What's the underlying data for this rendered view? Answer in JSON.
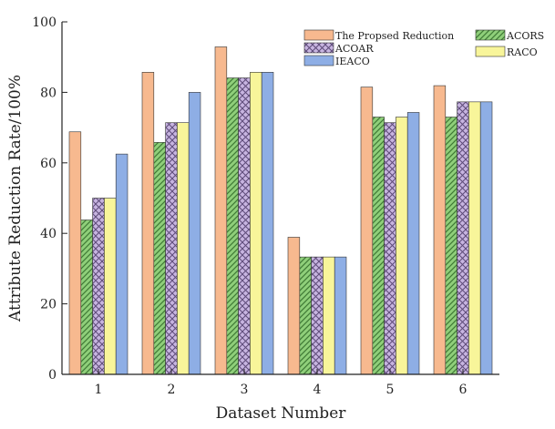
{
  "chart_data": {
    "type": "bar",
    "xlabel": "Dataset Number",
    "ylabel": "Attribute Reduction Rate/100%",
    "ylim": [
      0,
      100
    ],
    "yticks": [
      0,
      20,
      40,
      60,
      80,
      100
    ],
    "categories": [
      "1",
      "2",
      "3",
      "4",
      "5",
      "6"
    ],
    "legend_position": "top-right",
    "series": [
      {
        "name": "The Propsed Reduction",
        "color": "#f7b98f",
        "pattern": "none",
        "values": [
          68.8,
          85.7,
          92.9,
          38.9,
          81.5,
          81.9
        ]
      },
      {
        "name": "ACORS",
        "color": "#8fcf7a",
        "pattern": "diagonal",
        "values": [
          43.8,
          65.8,
          84.1,
          33.3,
          73.0,
          73.0
        ]
      },
      {
        "name": "ACOAR",
        "color": "#c7b4e0",
        "pattern": "crosshatch",
        "values": [
          50.0,
          71.4,
          84.1,
          33.3,
          71.4,
          77.3
        ]
      },
      {
        "name": "RACO",
        "color": "#f8f59a",
        "pattern": "none",
        "values": [
          50.0,
          71.4,
          85.7,
          33.3,
          73.0,
          77.3
        ]
      },
      {
        "name": "IEACO",
        "color": "#8eaee5",
        "pattern": "none",
        "values": [
          62.5,
          80.0,
          85.7,
          33.3,
          74.3,
          77.3
        ]
      }
    ]
  }
}
